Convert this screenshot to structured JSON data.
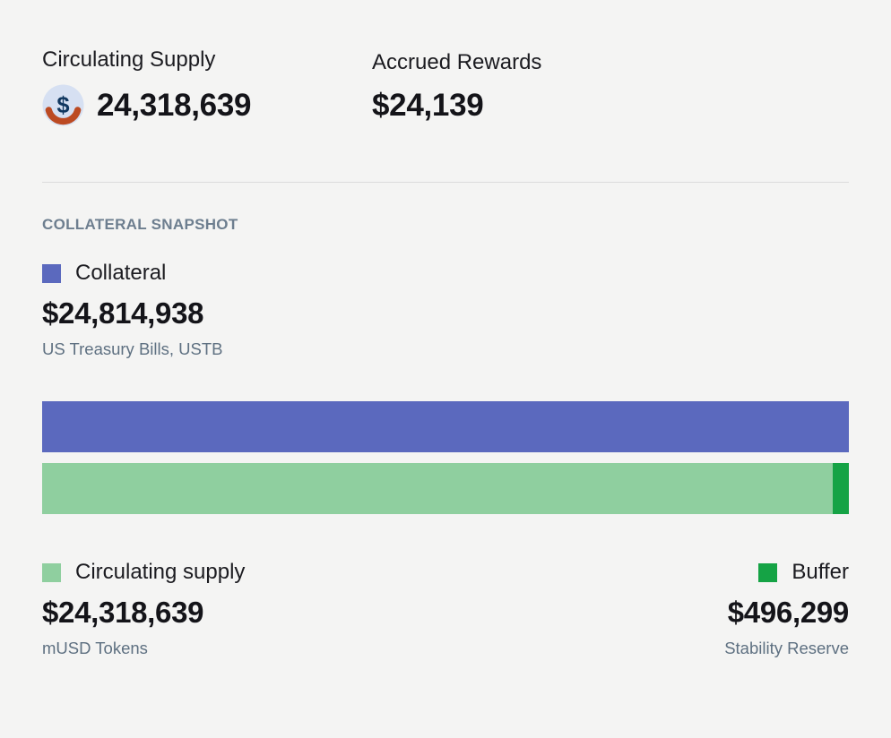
{
  "theme": {
    "background": "#f4f4f3",
    "text_primary": "#17171c",
    "text_secondary": "#5e7081",
    "divider_color": "#dcdcdc",
    "section_title_color": "#6d7e8f"
  },
  "header": {
    "circulating_supply": {
      "label": "Circulating Supply",
      "value": "24,318,639"
    },
    "accrued_rewards": {
      "label": "Accrued Rewards",
      "value": "$24,139"
    }
  },
  "snapshot": {
    "section_title": "COLLATERAL SNAPSHOT",
    "collateral": {
      "label": "Collateral",
      "value": "$24,814,938",
      "subtitle": "US Treasury Bills, USTB",
      "color": "#5b69be"
    },
    "circulating": {
      "label": "Circulating supply",
      "value": "$24,318,639",
      "subtitle": "mUSD Tokens",
      "color": "#8fcf9f"
    },
    "buffer": {
      "label": "Buffer",
      "value": "$496,299",
      "subtitle": "Stability Reserve",
      "color": "#15a345"
    }
  },
  "icons": {
    "token_icon": "musd-dollar-coin",
    "token_icon_bg": "#d6e0f2",
    "token_icon_glyph_color": "#10375f",
    "token_icon_arc_color": "#bc4a22"
  },
  "chart_data": {
    "type": "bar",
    "orientation": "horizontal",
    "title": "COLLATERAL SNAPSHOT",
    "total": 24814938,
    "bars": [
      {
        "row": "collateral",
        "segments": [
          {
            "name": "Collateral",
            "value": 24814938,
            "color": "#5b69be"
          }
        ]
      },
      {
        "row": "supply",
        "segments": [
          {
            "name": "Circulating supply",
            "value": 24318639,
            "color": "#8fcf9f"
          },
          {
            "name": "Buffer",
            "value": 496299,
            "color": "#15a345"
          }
        ]
      }
    ],
    "legend": [
      "Collateral",
      "Circulating supply",
      "Buffer"
    ],
    "grid": false,
    "axes_shown": false
  }
}
